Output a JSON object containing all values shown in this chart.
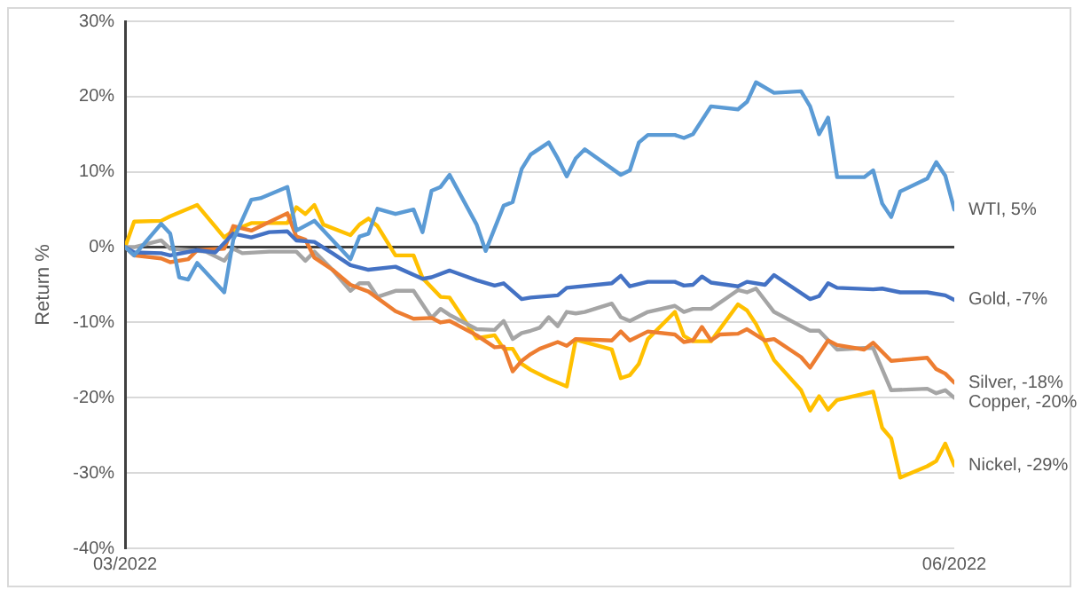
{
  "chart_data": {
    "type": "line",
    "ylabel": "Return %",
    "xlim": [
      "2022-03-01",
      "2022-06-01"
    ],
    "xticks": [
      {
        "value": "2022-03-01",
        "label": "03/2022"
      },
      {
        "value": "2022-06-01",
        "label": "06/2022"
      }
    ],
    "ylim": [
      -40,
      30
    ],
    "yticks": [
      {
        "value": -40,
        "label": "-40%"
      },
      {
        "value": -30,
        "label": "-30%"
      },
      {
        "value": -20,
        "label": "-20%"
      },
      {
        "value": -10,
        "label": "-10%"
      },
      {
        "value": 0,
        "label": "0%"
      },
      {
        "value": 10,
        "label": "10%"
      },
      {
        "value": 20,
        "label": "20%"
      },
      {
        "value": 30,
        "label": "30%"
      }
    ],
    "grid": "y",
    "legend": false,
    "marker": "none",
    "line_style": "solid",
    "ref_lines": [
      {
        "axis": "y",
        "value": 0,
        "color": "#404040"
      }
    ],
    "series": [
      {
        "name": "WTI, 5%",
        "color": "#5b9bd5",
        "x": [
          "2022-03-01",
          "2022-03-02",
          "2022-03-05",
          "2022-03-06",
          "2022-03-07",
          "2022-03-08",
          "2022-03-09",
          "2022-03-12",
          "2022-03-13",
          "2022-03-15",
          "2022-03-16",
          "2022-03-19",
          "2022-03-20",
          "2022-03-22",
          "2022-03-26",
          "2022-03-27",
          "2022-03-28",
          "2022-03-29",
          "2022-03-31",
          "2022-04-02",
          "2022-04-03",
          "2022-04-04",
          "2022-04-05",
          "2022-04-06",
          "2022-04-09",
          "2022-04-10",
          "2022-04-12",
          "2022-04-13",
          "2022-04-14",
          "2022-04-15",
          "2022-04-17",
          "2022-04-18",
          "2022-04-19",
          "2022-04-20",
          "2022-04-21",
          "2022-04-25",
          "2022-04-26",
          "2022-04-27",
          "2022-04-28",
          "2022-05-01",
          "2022-05-02",
          "2022-05-03",
          "2022-05-05",
          "2022-05-08",
          "2022-05-09",
          "2022-05-10",
          "2022-05-12",
          "2022-05-15",
          "2022-05-16",
          "2022-05-17",
          "2022-05-18",
          "2022-05-19",
          "2022-05-22",
          "2022-05-23",
          "2022-05-24",
          "2022-05-25",
          "2022-05-26",
          "2022-05-29",
          "2022-05-30",
          "2022-05-31",
          "2022-06-01"
        ],
        "values": [
          0,
          -1.1,
          3.1,
          1.8,
          -4,
          -4.3,
          -2.1,
          -6,
          1,
          6.3,
          6.5,
          8,
          2.2,
          3.5,
          -1.6,
          1.4,
          1.8,
          5.1,
          4.4,
          5,
          2,
          7.5,
          8,
          9.6,
          3,
          -0.5,
          5.5,
          6,
          10.4,
          12.3,
          13.9,
          11.8,
          9.4,
          11.8,
          13,
          9.6,
          10.2,
          13.9,
          14.9,
          14.9,
          14.5,
          15,
          18.7,
          18.3,
          19.3,
          21.9,
          20.5,
          20.7,
          18.7,
          15,
          17.2,
          9.3,
          9.3,
          10.2,
          5.8,
          4,
          7.4,
          9.1,
          11.3,
          9.5,
          5
        ]
      },
      {
        "name": "Gold, -7%",
        "color": "#4472c4",
        "x": [
          "2022-03-01",
          "2022-03-02",
          "2022-03-05",
          "2022-03-06",
          "2022-03-09",
          "2022-03-11",
          "2022-03-13",
          "2022-03-15",
          "2022-03-17",
          "2022-03-19",
          "2022-03-20",
          "2022-03-22",
          "2022-03-24",
          "2022-03-26",
          "2022-03-28",
          "2022-03-31",
          "2022-04-03",
          "2022-04-04",
          "2022-04-06",
          "2022-04-09",
          "2022-04-11",
          "2022-04-12",
          "2022-04-14",
          "2022-04-15",
          "2022-04-18",
          "2022-04-19",
          "2022-04-24",
          "2022-04-25",
          "2022-04-26",
          "2022-04-28",
          "2022-05-01",
          "2022-05-02",
          "2022-05-03",
          "2022-05-04",
          "2022-05-05",
          "2022-05-08",
          "2022-05-09",
          "2022-05-11",
          "2022-05-12",
          "2022-05-16",
          "2022-05-17",
          "2022-05-18",
          "2022-05-19",
          "2022-05-23",
          "2022-05-24",
          "2022-05-26",
          "2022-05-29",
          "2022-05-31",
          "2022-06-01"
        ],
        "values": [
          0,
          -0.7,
          -0.8,
          -1.1,
          -0.4,
          -0.7,
          1.8,
          1.3,
          2,
          2.1,
          0.9,
          0.7,
          -0.8,
          -2.4,
          -3,
          -2.6,
          -4.2,
          -4,
          -3.1,
          -4.4,
          -5.1,
          -4.8,
          -6.9,
          -6.7,
          -6.4,
          -5.4,
          -4.8,
          -3.8,
          -5.2,
          -4.6,
          -4.6,
          -5.1,
          -5,
          -3.9,
          -4.7,
          -5.2,
          -4.6,
          -5,
          -3.7,
          -6.9,
          -6.5,
          -4.8,
          -5.4,
          -5.6,
          -5.5,
          -6,
          -6,
          -6.4,
          -7
        ]
      },
      {
        "name": "Silver, -18%",
        "color": "#ed7d31",
        "x": [
          "2022-03-01",
          "2022-03-02",
          "2022-03-05",
          "2022-03-06",
          "2022-03-08",
          "2022-03-09",
          "2022-03-12",
          "2022-03-13",
          "2022-03-15",
          "2022-03-19",
          "2022-03-20",
          "2022-03-21",
          "2022-03-22",
          "2022-03-24",
          "2022-03-26",
          "2022-03-28",
          "2022-03-31",
          "2022-04-02",
          "2022-04-04",
          "2022-04-05",
          "2022-04-06",
          "2022-04-09",
          "2022-04-11",
          "2022-04-12",
          "2022-04-13",
          "2022-04-14",
          "2022-04-15",
          "2022-04-16",
          "2022-04-18",
          "2022-04-19",
          "2022-04-20",
          "2022-04-24",
          "2022-04-25",
          "2022-04-26",
          "2022-04-28",
          "2022-05-01",
          "2022-05-02",
          "2022-05-03",
          "2022-05-04",
          "2022-05-05",
          "2022-05-06",
          "2022-05-08",
          "2022-05-09",
          "2022-05-11",
          "2022-05-12",
          "2022-05-15",
          "2022-05-16",
          "2022-05-18",
          "2022-05-19",
          "2022-05-22",
          "2022-05-23",
          "2022-05-25",
          "2022-05-29",
          "2022-05-30",
          "2022-05-31",
          "2022-06-01"
        ],
        "values": [
          0,
          -1.1,
          -1.5,
          -2,
          -1.6,
          -0.4,
          -0.2,
          2.8,
          2.2,
          4.5,
          1.4,
          1,
          -1.4,
          -3,
          -5,
          -5.9,
          -8.5,
          -9.5,
          -9.4,
          -10,
          -9.8,
          -11.7,
          -13.3,
          -13.2,
          -16.5,
          -15.1,
          -14.2,
          -13.5,
          -12.6,
          -13.1,
          -12.2,
          -12.4,
          -11.2,
          -12.4,
          -11.2,
          -11.6,
          -12.6,
          -12.4,
          -10.6,
          -12.4,
          -11.6,
          -11.5,
          -10.9,
          -12.4,
          -12.2,
          -14.6,
          -16,
          -12.4,
          -13,
          -13.6,
          -12.7,
          -15.1,
          -14.7,
          -16.2,
          -16.8,
          -18
        ]
      },
      {
        "name": "Copper, -20%",
        "color": "#a5a5a5",
        "x": [
          "2022-03-01",
          "2022-03-02",
          "2022-03-05",
          "2022-03-06",
          "2022-03-10",
          "2022-03-12",
          "2022-03-13",
          "2022-03-14",
          "2022-03-17",
          "2022-03-20",
          "2022-03-21",
          "2022-03-22",
          "2022-03-24",
          "2022-03-26",
          "2022-03-27",
          "2022-03-28",
          "2022-03-29",
          "2022-03-31",
          "2022-04-02",
          "2022-04-04",
          "2022-04-05",
          "2022-04-06",
          "2022-04-09",
          "2022-04-11",
          "2022-04-12",
          "2022-04-13",
          "2022-04-14",
          "2022-04-15",
          "2022-04-16",
          "2022-04-17",
          "2022-04-18",
          "2022-04-19",
          "2022-04-20",
          "2022-04-21",
          "2022-04-24",
          "2022-04-25",
          "2022-04-26",
          "2022-04-28",
          "2022-05-01",
          "2022-05-02",
          "2022-05-03",
          "2022-05-05",
          "2022-05-08",
          "2022-05-09",
          "2022-05-10",
          "2022-05-12",
          "2022-05-15",
          "2022-05-16",
          "2022-05-17",
          "2022-05-19",
          "2022-05-22",
          "2022-05-23",
          "2022-05-25",
          "2022-05-29",
          "2022-05-30",
          "2022-05-31",
          "2022-06-01"
        ],
        "values": [
          0,
          0,
          0.9,
          -0.2,
          -0.6,
          -1.8,
          -0.2,
          -0.8,
          -0.6,
          -0.6,
          -1.8,
          -0.6,
          -3,
          -5.8,
          -4.8,
          -4.8,
          -6.6,
          -5.8,
          -5.8,
          -9.4,
          -8.2,
          -9,
          -10.9,
          -11,
          -9.8,
          -12.2,
          -11.4,
          -11.1,
          -10.7,
          -9.3,
          -10.5,
          -8.6,
          -8.8,
          -8.6,
          -7.5,
          -9.3,
          -9.8,
          -8.6,
          -7.8,
          -8.6,
          -8.2,
          -8.2,
          -5.7,
          -6,
          -5.5,
          -8.6,
          -10.5,
          -11.1,
          -11.1,
          -13.6,
          -13.4,
          -13.4,
          -19,
          -18.8,
          -19.4,
          -19,
          -20
        ]
      },
      {
        "name": "Nickel, -29%",
        "color": "#ffc000",
        "x": [
          "2022-03-01",
          "2022-03-02",
          "2022-03-05",
          "2022-03-06",
          "2022-03-09",
          "2022-03-12",
          "2022-03-13",
          "2022-03-15",
          "2022-03-19",
          "2022-03-20",
          "2022-03-21",
          "2022-03-22",
          "2022-03-23",
          "2022-03-26",
          "2022-03-27",
          "2022-03-28",
          "2022-03-29",
          "2022-03-31",
          "2022-04-02",
          "2022-04-03",
          "2022-04-05",
          "2022-04-06",
          "2022-04-09",
          "2022-04-11",
          "2022-04-12",
          "2022-04-13",
          "2022-04-14",
          "2022-04-15",
          "2022-04-17",
          "2022-04-19",
          "2022-04-20",
          "2022-04-24",
          "2022-04-25",
          "2022-04-26",
          "2022-04-27",
          "2022-04-28",
          "2022-05-01",
          "2022-05-02",
          "2022-05-03",
          "2022-05-05",
          "2022-05-08",
          "2022-05-09",
          "2022-05-10",
          "2022-05-12",
          "2022-05-15",
          "2022-05-16",
          "2022-05-17",
          "2022-05-18",
          "2022-05-19",
          "2022-05-23",
          "2022-05-24",
          "2022-05-25",
          "2022-05-26",
          "2022-05-29",
          "2022-05-30",
          "2022-05-31",
          "2022-06-01"
        ],
        "values": [
          0,
          3.4,
          3.5,
          4.1,
          5.6,
          1.3,
          2.2,
          3.2,
          3.2,
          5.3,
          4.4,
          5.6,
          3,
          1.6,
          3,
          3.8,
          2.8,
          -1.1,
          -1.1,
          -4.1,
          -6.6,
          -6.7,
          -12.1,
          -11.7,
          -13.5,
          -13.5,
          -15.5,
          -16.3,
          -17.5,
          -18.5,
          -12.3,
          -13.6,
          -17.4,
          -17,
          -15.5,
          -12.2,
          -8.6,
          -11.8,
          -12.5,
          -12.5,
          -7.6,
          -8.4,
          -10.2,
          -15,
          -19,
          -21.7,
          -19.8,
          -21.6,
          -20.3,
          -19.2,
          -24,
          -25.4,
          -30.6,
          -29.1,
          -28.4,
          -26.1,
          -29
        ]
      }
    ]
  }
}
